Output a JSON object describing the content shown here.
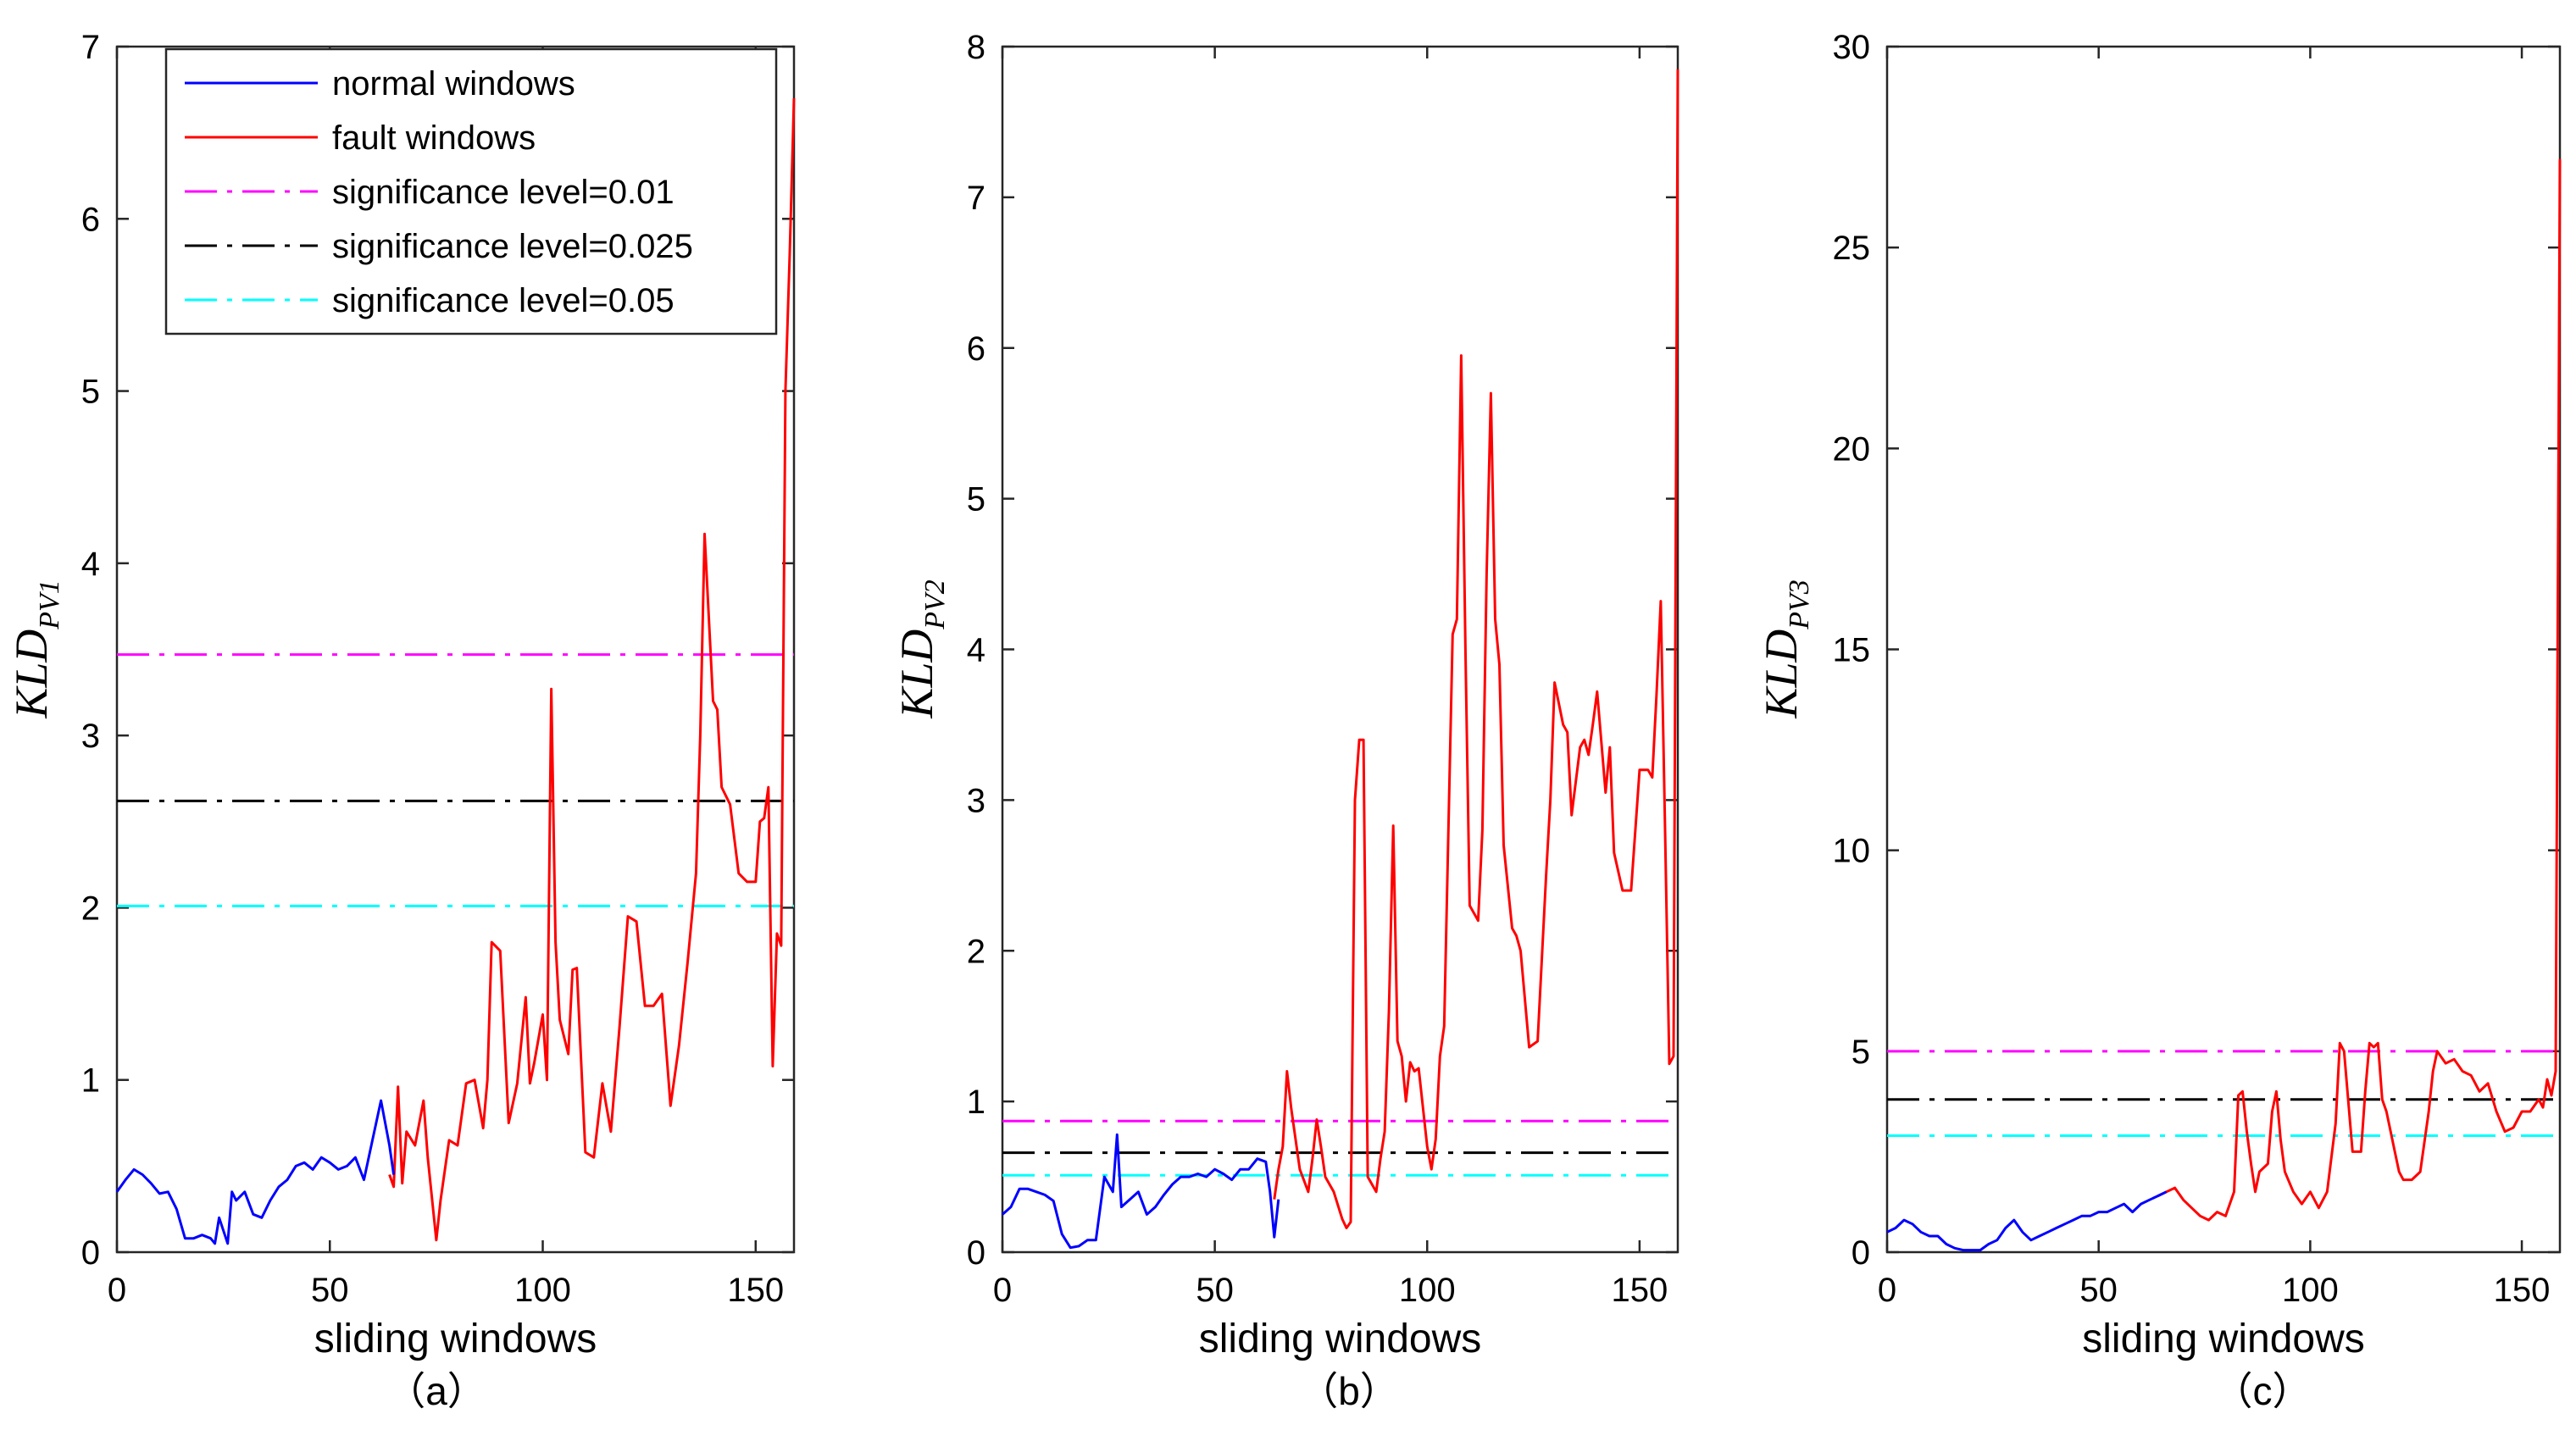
{
  "colors": {
    "normal": "#0000ff",
    "fault": "#ff0000",
    "sig001": "#ff00ff",
    "sig0025": "#000000",
    "sig005": "#00ffff"
  },
  "legend": {
    "normal": "normal windows",
    "fault": "fault windows",
    "sig001": "significance level=0.01",
    "sig0025": "significance level=0.025",
    "sig005": "significance level=0.05"
  },
  "chart_data": [
    {
      "type": "line",
      "caption": "（a）",
      "xlabel": "sliding windows",
      "ylabel_main": "KLD",
      "ylabel_sub": "PV1",
      "xlim": [
        0,
        159
      ],
      "ylim": [
        0,
        7
      ],
      "xticks": [
        "0",
        "50",
        "100",
        "150"
      ],
      "yticks": [
        "0",
        "1",
        "2",
        "3",
        "4",
        "5",
        "6",
        "7"
      ],
      "thresholds": {
        "sig001": 3.47,
        "sig0025": 2.62,
        "sig005": 2.01
      },
      "normal": {
        "x": [
          0,
          2,
          4,
          6,
          8,
          10,
          12,
          14,
          16,
          18,
          20,
          22,
          23,
          24,
          26,
          27,
          28,
          30,
          32,
          34,
          36,
          38,
          40,
          42,
          44,
          46,
          48,
          50,
          52,
          54,
          56,
          58,
          60,
          62,
          64,
          65
        ],
        "y": [
          0.35,
          0.42,
          0.48,
          0.45,
          0.4,
          0.34,
          0.35,
          0.25,
          0.08,
          0.08,
          0.1,
          0.08,
          0.05,
          0.2,
          0.05,
          0.35,
          0.3,
          0.35,
          0.22,
          0.2,
          0.3,
          0.38,
          0.42,
          0.5,
          0.52,
          0.48,
          0.55,
          0.52,
          0.48,
          0.5,
          0.55,
          0.42,
          0.65,
          0.88,
          0.62,
          0.45
        ]
      },
      "fault": {
        "x": [
          64,
          65,
          66,
          67,
          68,
          70,
          72,
          73,
          75,
          76,
          78,
          80,
          82,
          84,
          86,
          87,
          88,
          90,
          92,
          94,
          96,
          97,
          98,
          100,
          101,
          102,
          103,
          104,
          106,
          107,
          108,
          110,
          112,
          114,
          116,
          118,
          120,
          122,
          124,
          126,
          128,
          130,
          132,
          134,
          136,
          137,
          138,
          140,
          141,
          142,
          143,
          144,
          146,
          148,
          150,
          151,
          152,
          153,
          154,
          155,
          156,
          157,
          158,
          159
        ],
        "y": [
          0.45,
          0.38,
          0.96,
          0.4,
          0.7,
          0.62,
          0.88,
          0.55,
          0.07,
          0.3,
          0.65,
          0.62,
          0.98,
          1.0,
          0.72,
          1.0,
          1.8,
          1.75,
          0.75,
          0.98,
          1.48,
          0.98,
          1.1,
          1.38,
          1.0,
          3.27,
          1.8,
          1.35,
          1.15,
          1.64,
          1.65,
          0.58,
          0.55,
          0.98,
          0.7,
          1.3,
          1.95,
          1.92,
          1.43,
          1.43,
          1.5,
          0.85,
          1.2,
          1.68,
          2.2,
          3.0,
          4.17,
          3.2,
          3.15,
          2.7,
          2.65,
          2.6,
          2.2,
          2.15,
          2.15,
          2.5,
          2.52,
          2.7,
          1.08,
          1.85,
          1.78,
          5.0,
          5.8,
          6.7
        ]
      }
    },
    {
      "type": "line",
      "caption": "（b）",
      "xlabel": "sliding windows",
      "ylabel_main": "KLD",
      "ylabel_sub": "PV2",
      "xlim": [
        0,
        159
      ],
      "ylim": [
        0,
        8
      ],
      "xticks": [
        "0",
        "50",
        "100",
        "150"
      ],
      "yticks": [
        "0",
        "1",
        "2",
        "3",
        "4",
        "5",
        "6",
        "7",
        "8"
      ],
      "thresholds": {
        "sig001": 0.87,
        "sig0025": 0.66,
        "sig005": 0.51
      },
      "normal": {
        "x": [
          0,
          2,
          4,
          6,
          8,
          10,
          12,
          14,
          16,
          18,
          20,
          22,
          24,
          26,
          27,
          28,
          30,
          32,
          34,
          36,
          38,
          40,
          42,
          44,
          46,
          48,
          50,
          52,
          54,
          56,
          58,
          60,
          62,
          63,
          64,
          65
        ],
        "y": [
          0.25,
          0.3,
          0.42,
          0.42,
          0.4,
          0.38,
          0.34,
          0.12,
          0.03,
          0.04,
          0.08,
          0.08,
          0.5,
          0.4,
          0.78,
          0.3,
          0.35,
          0.4,
          0.25,
          0.3,
          0.38,
          0.45,
          0.5,
          0.5,
          0.52,
          0.5,
          0.55,
          0.52,
          0.48,
          0.55,
          0.55,
          0.62,
          0.6,
          0.4,
          0.1,
          0.35
        ]
      },
      "fault": {
        "x": [
          64,
          65,
          66,
          67,
          68,
          70,
          72,
          73,
          74,
          75,
          76,
          78,
          80,
          81,
          82,
          83,
          84,
          85,
          86,
          88,
          89,
          90,
          91,
          92,
          93,
          94,
          95,
          96,
          97,
          98,
          100,
          101,
          102,
          103,
          104,
          106,
          107,
          108,
          109,
          110,
          112,
          113,
          114,
          115,
          116,
          117,
          118,
          120,
          121,
          122,
          124,
          126,
          128,
          129,
          130,
          132,
          133,
          134,
          136,
          137,
          138,
          139,
          140,
          142,
          143,
          144,
          146,
          148,
          149,
          150,
          151,
          152,
          153,
          154,
          155,
          156,
          157,
          158,
          159
        ],
        "y": [
          0.35,
          0.55,
          0.7,
          1.2,
          0.95,
          0.55,
          0.4,
          0.62,
          0.88,
          0.7,
          0.5,
          0.4,
          0.22,
          0.16,
          0.2,
          3.0,
          3.4,
          3.4,
          0.5,
          0.4,
          0.62,
          0.8,
          1.6,
          2.83,
          1.4,
          1.3,
          1.0,
          1.26,
          1.2,
          1.22,
          0.7,
          0.55,
          0.75,
          1.3,
          1.5,
          4.1,
          4.2,
          5.95,
          4.0,
          2.3,
          2.2,
          2.8,
          4.5,
          5.7,
          4.2,
          3.9,
          2.7,
          2.15,
          2.1,
          2.0,
          1.36,
          1.4,
          2.5,
          3.0,
          3.78,
          3.5,
          3.45,
          2.9,
          3.35,
          3.4,
          3.3,
          3.5,
          3.72,
          3.05,
          3.35,
          2.65,
          2.4,
          2.4,
          2.8,
          3.2,
          3.2,
          3.2,
          3.15,
          3.7,
          4.32,
          2.8,
          1.25,
          1.3,
          7.85
        ]
      }
    },
    {
      "type": "line",
      "caption": "（c）",
      "xlabel": "sliding windows",
      "ylabel_main": "KLD",
      "ylabel_sub": "PV3",
      "xlim": [
        0,
        159
      ],
      "ylim": [
        0,
        30
      ],
      "xticks": [
        "0",
        "50",
        "100",
        "150"
      ],
      "yticks": [
        "0",
        "5",
        "10",
        "15",
        "20",
        "25",
        "30"
      ],
      "thresholds": {
        "sig001": 5.0,
        "sig0025": 3.8,
        "sig005": 2.9
      },
      "normal": {
        "x": [
          0,
          2,
          4,
          6,
          8,
          10,
          12,
          14,
          16,
          18,
          20,
          22,
          24,
          26,
          28,
          30,
          32,
          34,
          36,
          38,
          40,
          42,
          44,
          46,
          48,
          50,
          52,
          54,
          56,
          58,
          60,
          62,
          64,
          66
        ],
        "y": [
          0.5,
          0.6,
          0.8,
          0.7,
          0.5,
          0.4,
          0.4,
          0.2,
          0.1,
          0.05,
          0.05,
          0.05,
          0.2,
          0.3,
          0.6,
          0.8,
          0.5,
          0.3,
          0.4,
          0.5,
          0.6,
          0.7,
          0.8,
          0.9,
          0.9,
          1.0,
          1.0,
          1.1,
          1.2,
          1.0,
          1.2,
          1.3,
          1.4,
          1.5
        ]
      },
      "fault": {
        "x": [
          64,
          66,
          68,
          70,
          72,
          74,
          76,
          78,
          80,
          82,
          83,
          84,
          85,
          86,
          87,
          88,
          90,
          91,
          92,
          93,
          94,
          96,
          98,
          100,
          102,
          104,
          106,
          107,
          108,
          110,
          112,
          113,
          114,
          115,
          116,
          117,
          118,
          120,
          121,
          122,
          124,
          126,
          128,
          129,
          130,
          132,
          134,
          136,
          138,
          140,
          142,
          144,
          146,
          148,
          150,
          152,
          154,
          155,
          156,
          157,
          158,
          159
        ],
        "y": [
          1.4,
          1.5,
          1.6,
          1.3,
          1.1,
          0.9,
          0.8,
          1.0,
          0.9,
          1.5,
          3.9,
          4.0,
          3.0,
          2.2,
          1.5,
          2.0,
          2.2,
          3.5,
          4.0,
          2.8,
          2.0,
          1.5,
          1.2,
          1.5,
          1.1,
          1.5,
          3.2,
          5.2,
          5.0,
          2.5,
          2.5,
          4.0,
          5.2,
          5.1,
          5.2,
          3.8,
          3.5,
          2.5,
          2.0,
          1.8,
          1.8,
          2.0,
          3.5,
          4.5,
          5.0,
          4.7,
          4.8,
          4.5,
          4.4,
          4.0,
          4.2,
          3.5,
          3.0,
          3.1,
          3.5,
          3.5,
          3.8,
          3.6,
          4.3,
          3.9,
          4.5,
          27.2
        ]
      }
    }
  ]
}
